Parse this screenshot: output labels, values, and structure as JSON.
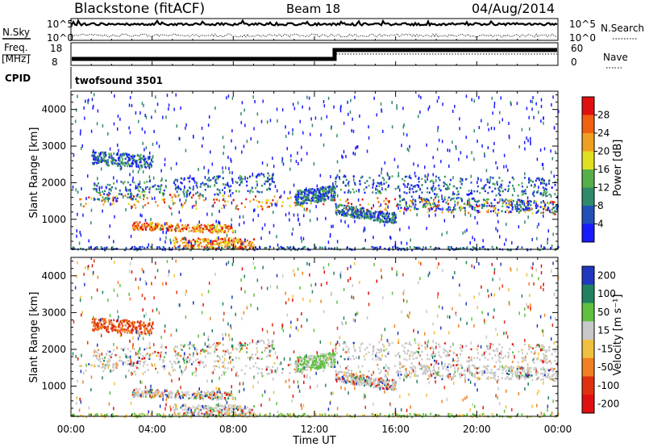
{
  "header": {
    "title": "Blackstone (fitACF)",
    "beam": "Beam 18",
    "date": "04/Aug/2014"
  },
  "top_panels": {
    "nsky_label": "N.Sky",
    "nsearch_label": "N.Search",
    "noise_ticks": [
      "10^5",
      "10^0"
    ],
    "freq_label": "Freq.",
    "freq_unit": "[MHz]",
    "freq_ticks": [
      "18",
      "8"
    ],
    "nave_label": "Nave",
    "nave_ticks": [
      "60",
      "0"
    ],
    "cpid_label": "CPID",
    "cpid_value": "twofsound 3501"
  },
  "colorbars": {
    "power": {
      "label": "Power [dB]",
      "ticks": [
        "4",
        "8",
        "12",
        "16",
        "20",
        "24",
        "28"
      ],
      "colors": [
        "#1a1aff",
        "#2050b8",
        "#2e8a6a",
        "#56b04a",
        "#e0e020",
        "#f0a020",
        "#f06010",
        "#e01010"
      ]
    },
    "velocity": {
      "label": "Velocity [m s⁻¹]",
      "ticks": [
        "200",
        "100",
        "50",
        "15",
        "-15",
        "-50",
        "-100",
        "-200"
      ],
      "colors": [
        "#2038c0",
        "#208060",
        "#60c040",
        "#c8c8c8",
        "#f0c040",
        "#f08020",
        "#e03010",
        "#e01010"
      ]
    }
  },
  "chart_data": [
    {
      "type": "heatmap",
      "title": "",
      "ylabel": "Slant Range [km]",
      "ylim": [
        180,
        4500
      ],
      "yticks": [
        "1000",
        "2000",
        "3000",
        "4000"
      ],
      "quantity": "Power [dB]",
      "xlim": [
        "00:00",
        "24:00"
      ],
      "xticks": [
        "00:00",
        "04:00",
        "08:00",
        "12:00",
        "16:00",
        "20:00",
        "00:00"
      ]
    },
    {
      "type": "heatmap",
      "title": "",
      "ylabel": "Slant Range [km]",
      "ylim": [
        180,
        4500
      ],
      "yticks": [
        "1000",
        "2000",
        "3000",
        "4000"
      ],
      "quantity": "Velocity [m s-1]",
      "xlabel": "Time UT",
      "xlim": [
        "00:00",
        "24:00"
      ],
      "xticks": [
        "00:00",
        "04:00",
        "08:00",
        "12:00",
        "16:00",
        "20:00",
        "00:00"
      ]
    }
  ]
}
